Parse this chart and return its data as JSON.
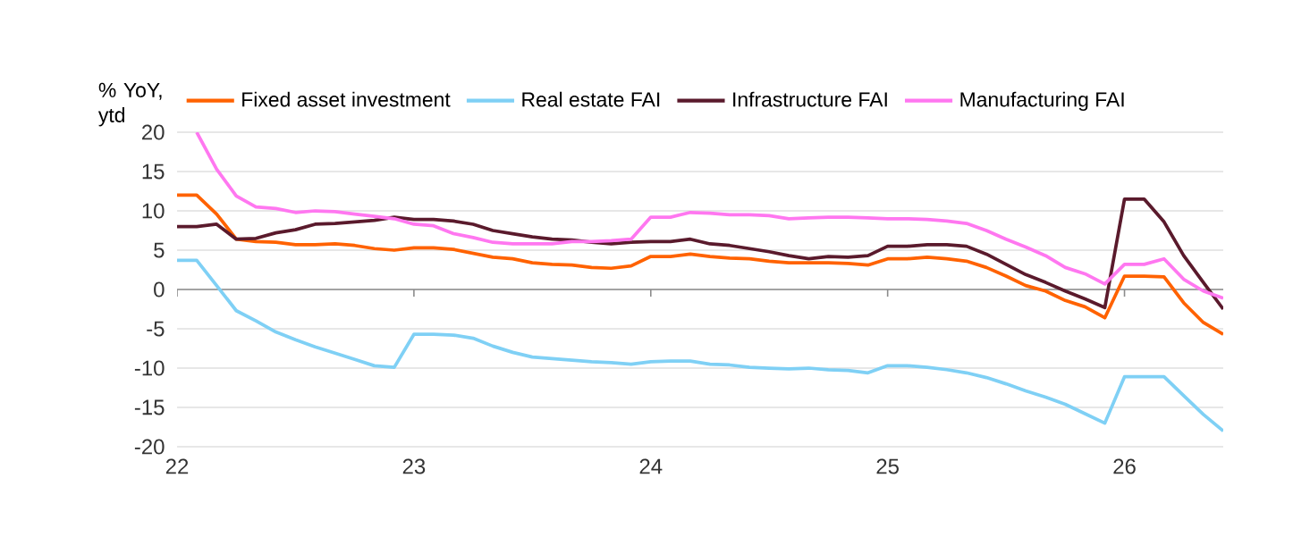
{
  "chart_data": {
    "type": "line",
    "ylabel": "% YoY, ytd",
    "x": [
      22.0,
      22.083,
      22.167,
      22.25,
      22.333,
      22.417,
      22.5,
      22.583,
      22.667,
      22.75,
      22.833,
      22.917,
      23.0,
      23.083,
      23.167,
      23.25,
      23.333,
      23.417,
      23.5,
      23.583,
      23.667,
      23.75,
      23.833,
      23.917,
      24.0,
      24.083,
      24.167,
      24.25,
      24.333,
      24.417,
      24.5,
      24.583,
      24.667,
      24.75,
      24.833,
      24.917,
      25.0,
      25.083,
      25.167,
      25.25,
      25.333,
      25.417,
      25.5,
      25.583,
      25.667,
      25.75,
      25.833,
      25.917,
      26.0,
      26.083,
      26.167,
      26.25,
      26.333,
      26.417
    ],
    "series": [
      {
        "name": "Fixed asset investment",
        "color": "#ff6200",
        "values": [
          12.0,
          12.0,
          9.6,
          6.4,
          6.1,
          6.0,
          5.7,
          5.7,
          5.8,
          5.6,
          5.2,
          5.0,
          5.3,
          5.3,
          5.1,
          4.6,
          4.1,
          3.9,
          3.4,
          3.2,
          3.1,
          2.8,
          2.7,
          3.0,
          4.2,
          4.2,
          4.5,
          4.2,
          4.0,
          3.9,
          3.6,
          3.4,
          3.4,
          3.4,
          3.3,
          3.1,
          3.9,
          3.9,
          4.1,
          3.9,
          3.6,
          2.8,
          1.7,
          0.5,
          -0.2,
          -1.4,
          -2.2,
          -3.6,
          1.7,
          1.7,
          1.6,
          -1.7,
          -4.2,
          -5.7
        ]
      },
      {
        "name": "Real estate FAI",
        "color": "#7fd0f5",
        "values": [
          3.7,
          3.7,
          0.5,
          -2.7,
          -4.0,
          -5.4,
          -6.4,
          -7.3,
          -8.1,
          -8.9,
          -9.7,
          -9.9,
          -5.7,
          -5.7,
          -5.8,
          -6.2,
          -7.2,
          -8.0,
          -8.6,
          -8.8,
          -9.0,
          -9.2,
          -9.3,
          -9.5,
          -9.2,
          -9.1,
          -9.1,
          -9.5,
          -9.6,
          -9.9,
          -10.0,
          -10.1,
          -10.0,
          -10.2,
          -10.3,
          -10.6,
          -9.7,
          -9.7,
          -9.9,
          -10.2,
          -10.6,
          -11.2,
          -12.0,
          -12.9,
          -13.7,
          -14.6,
          -15.8,
          -17.0,
          -11.1,
          -11.1,
          -11.1,
          -13.5,
          -15.9,
          -18.0
        ]
      },
      {
        "name": "Infrastructure FAI",
        "color": "#5a1a2c",
        "values": [
          8.0,
          8.0,
          8.3,
          6.4,
          6.5,
          7.2,
          7.6,
          8.3,
          8.4,
          8.6,
          8.8,
          9.2,
          8.9,
          8.9,
          8.7,
          8.3,
          7.5,
          7.1,
          6.7,
          6.4,
          6.3,
          6.0,
          5.8,
          6.0,
          6.1,
          6.1,
          6.4,
          5.8,
          5.6,
          5.2,
          4.8,
          4.3,
          3.9,
          4.2,
          4.1,
          4.3,
          5.5,
          5.5,
          5.7,
          5.7,
          5.5,
          4.5,
          3.2,
          1.9,
          0.9,
          -0.2,
          -1.2,
          -2.3,
          11.5,
          11.5,
          8.6,
          4.3,
          0.9,
          -2.5
        ]
      },
      {
        "name": "Manufacturing FAI",
        "color": "#ff77f0",
        "values": [
          null,
          20.0,
          15.3,
          11.9,
          10.5,
          10.3,
          9.8,
          10.0,
          9.9,
          9.6,
          9.3,
          9.0,
          8.3,
          8.1,
          7.1,
          6.6,
          6.0,
          5.8,
          5.8,
          5.8,
          6.1,
          6.1,
          6.2,
          6.4,
          9.2,
          9.2,
          9.8,
          9.7,
          9.5,
          9.5,
          9.4,
          9.0,
          9.1,
          9.2,
          9.2,
          9.1,
          9.0,
          9.0,
          8.9,
          8.7,
          8.4,
          7.5,
          6.4,
          5.4,
          4.3,
          2.8,
          2.0,
          0.7,
          3.2,
          3.2,
          3.9,
          1.3,
          -0.2,
          -1.1
        ]
      }
    ],
    "xlim": [
      22,
      26.417
    ],
    "xticks": [
      22,
      23,
      24,
      25,
      26
    ],
    "ylim": [
      -20,
      20
    ],
    "yticks": [
      -20,
      -15,
      -10,
      -5,
      0,
      5,
      10,
      15,
      20
    ],
    "grid": "y",
    "legend": "top",
    "marker": "none",
    "line_style": "solid"
  }
}
